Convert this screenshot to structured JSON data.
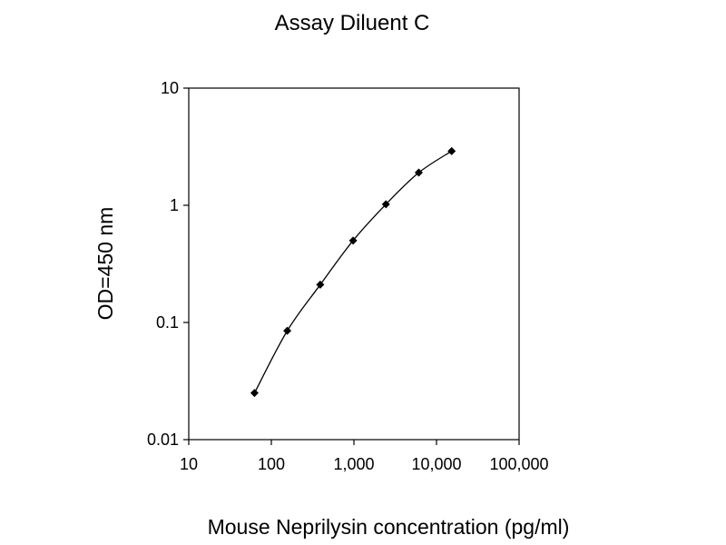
{
  "chart_data": {
    "type": "line",
    "title": "Assay Diluent C",
    "xlabel": "Mouse Neprilysin concentration (pg/ml)",
    "ylabel": "OD=450 nm",
    "x_scale": "log",
    "y_scale": "log",
    "xlim": [
      10,
      100000
    ],
    "ylim": [
      0.01,
      10
    ],
    "x_ticks": [
      {
        "value": 10,
        "label": "10"
      },
      {
        "value": 100,
        "label": "100"
      },
      {
        "value": 1000,
        "label": "1,000"
      },
      {
        "value": 10000,
        "label": "10,000"
      },
      {
        "value": 100000,
        "label": "100,000"
      }
    ],
    "y_ticks": [
      {
        "value": 0.01,
        "label": "0.01"
      },
      {
        "value": 0.1,
        "label": "0.1"
      },
      {
        "value": 1,
        "label": "1"
      },
      {
        "value": 10,
        "label": "10"
      }
    ],
    "grid": false,
    "legend": "none",
    "series": [
      {
        "color": "#000000",
        "marker": "diamond",
        "x": [
          62.5,
          156,
          391,
          977,
          2440,
          6100,
          15250
        ],
        "y": [
          0.025,
          0.085,
          0.21,
          0.5,
          1.02,
          1.9,
          2.9
        ]
      }
    ]
  }
}
